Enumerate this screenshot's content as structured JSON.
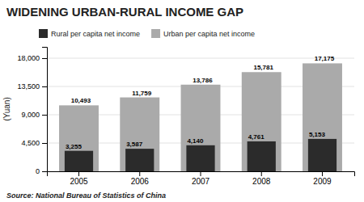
{
  "chart_data": {
    "type": "bar",
    "title": "WIDENING URBAN-RURAL INCOME GAP",
    "ylabel": "(Yuan)",
    "source": "Source: National Bureau of Statistics of China",
    "categories": [
      "2005",
      "2006",
      "2007",
      "2008",
      "2009"
    ],
    "series": [
      {
        "name": "Rural per capita net income",
        "color": "#2b2b2b",
        "values": [
          3255,
          3587,
          4140,
          4761,
          5153
        ],
        "value_labels": [
          "3,255",
          "3,587",
          "4,140",
          "4,761",
          "5,153"
        ]
      },
      {
        "name": "Urban per capita net income",
        "color": "#aaaaaa",
        "values": [
          10493,
          11759,
          13786,
          15781,
          17175
        ],
        "value_labels": [
          "10,493",
          "11,759",
          "13,786",
          "15,781",
          "17,175"
        ]
      }
    ],
    "ylim": [
      0,
      19800
    ],
    "yticks": [
      0,
      {
        "value": 4500,
        "label": "4,500"
      },
      {
        "value": 9000,
        "label": "9,000"
      },
      {
        "value": 13500,
        "label": "13,500"
      },
      {
        "value": 18000,
        "label": "18,000"
      }
    ],
    "grid": true,
    "legend": "upper left",
    "data_labels": true
  }
}
